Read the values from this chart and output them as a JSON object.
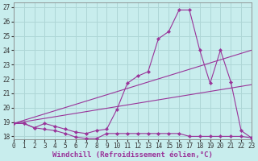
{
  "xlabel": "Windchill (Refroidissement éolien,°C)",
  "xlim": [
    0,
    23
  ],
  "ylim": [
    17.8,
    27.3
  ],
  "xticks": [
    0,
    1,
    2,
    3,
    4,
    5,
    6,
    7,
    8,
    9,
    10,
    11,
    12,
    13,
    14,
    15,
    16,
    17,
    18,
    19,
    20,
    21,
    22,
    23
  ],
  "yticks": [
    18,
    19,
    20,
    21,
    22,
    23,
    24,
    25,
    26,
    27
  ],
  "background_color": "#c8eded",
  "grid_color": "#aed6d6",
  "line_color": "#993399",
  "lines": [
    {
      "x": [
        0,
        1,
        2,
        3,
        4,
        5,
        6,
        7,
        8,
        9,
        10,
        11,
        12,
        13,
        14,
        15,
        16,
        17,
        18,
        19,
        20,
        21,
        22,
        23
      ],
      "y": [
        18.9,
        18.9,
        18.6,
        18.5,
        18.4,
        18.2,
        17.95,
        17.85,
        17.85,
        18.2,
        18.2,
        18.2,
        18.2,
        18.2,
        18.2,
        18.2,
        18.2,
        18.0,
        18.0,
        18.0,
        18.0,
        18.0,
        18.0,
        17.9
      ],
      "marker": "D",
      "markersize": 2.2
    },
    {
      "x": [
        0,
        23
      ],
      "y": [
        18.9,
        21.6
      ],
      "marker": null,
      "markersize": 0
    },
    {
      "x": [
        0,
        23
      ],
      "y": [
        18.9,
        24.0
      ],
      "marker": null,
      "markersize": 0
    },
    {
      "x": [
        0,
        1,
        2,
        3,
        4,
        5,
        6,
        7,
        8,
        9,
        10,
        11,
        12,
        13,
        14,
        15,
        16,
        17,
        18,
        19,
        20,
        21,
        22,
        23
      ],
      "y": [
        18.9,
        18.9,
        18.6,
        18.9,
        18.7,
        18.5,
        18.3,
        18.2,
        18.4,
        18.5,
        19.9,
        21.7,
        22.2,
        22.5,
        24.8,
        25.3,
        26.8,
        26.8,
        24.0,
        21.7,
        24.0,
        21.8,
        18.4,
        17.9
      ],
      "marker": "D",
      "markersize": 2.2
    }
  ],
  "font_family": "monospace",
  "tick_fontsize": 5.5,
  "xlabel_fontsize": 6.5
}
